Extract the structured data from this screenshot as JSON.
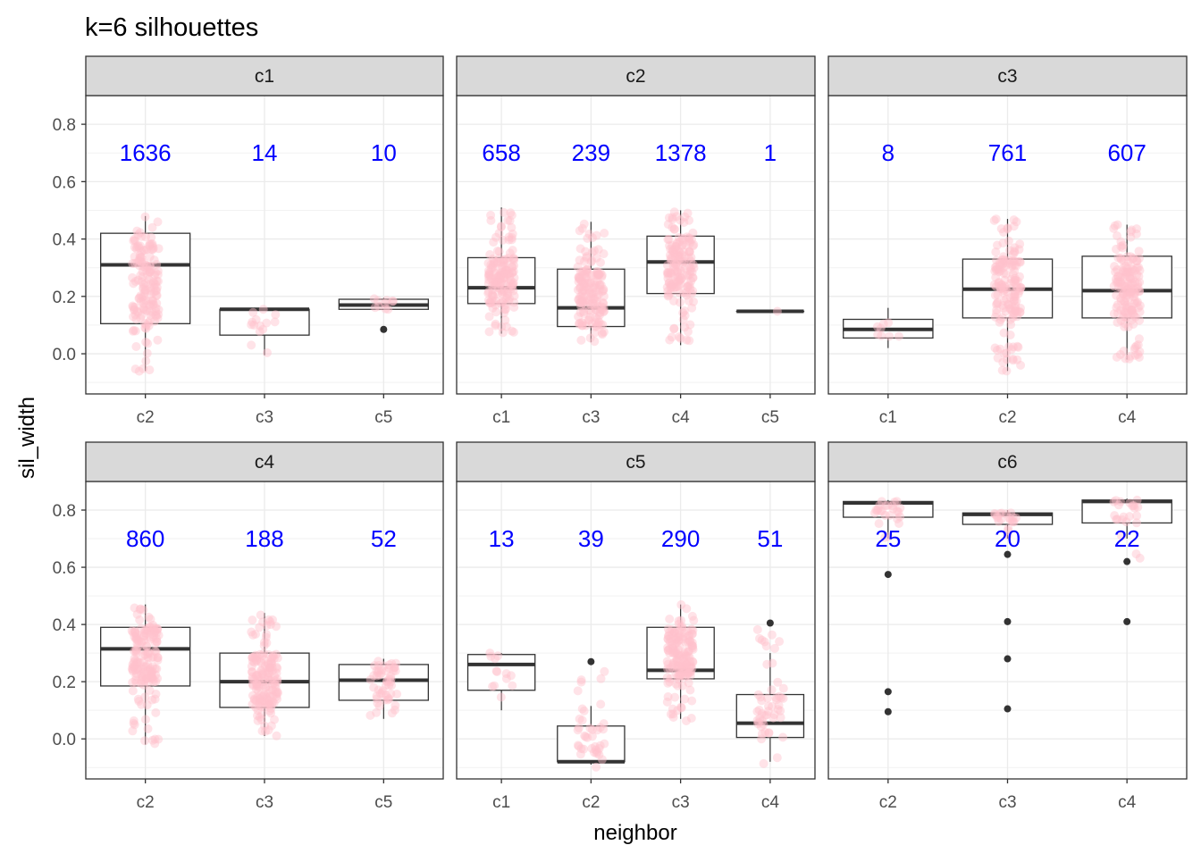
{
  "chart_data": {
    "type": "boxplot",
    "title": "k=6 silhouettes",
    "xlabel": "neighbor",
    "ylabel": "sil_width",
    "ylim": [
      -0.14,
      0.9
    ],
    "yticks": [
      0.0,
      0.2,
      0.4,
      0.6,
      0.8
    ],
    "ytick_labels": [
      "0.0",
      "0.2",
      "0.4",
      "0.6",
      "0.8"
    ],
    "count_label_y": 0.7,
    "grid": true,
    "colors": {
      "points": "#ffc0cb",
      "count_labels": "#0000ff",
      "box": "#333333",
      "outlier": "#333333",
      "strip_bg": "#d9d9d9",
      "grid": "#ebebeb"
    },
    "facets": [
      {
        "name": "c1",
        "groups": [
          {
            "neighbor": "c2",
            "count": "1636",
            "q1": 0.105,
            "median": 0.31,
            "q3": 0.42,
            "whisker_low": -0.06,
            "whisker_high": 0.48,
            "outliers": [],
            "points_range": [
              -0.07,
              0.48
            ]
          },
          {
            "neighbor": "c3",
            "count": "14",
            "q1": 0.065,
            "median": 0.155,
            "q3": 0.155,
            "whisker_low": -0.005,
            "whisker_high": 0.16,
            "outliers": [],
            "points_range": [
              0.0,
              0.19
            ]
          },
          {
            "neighbor": "c5",
            "count": "10",
            "q1": 0.155,
            "median": 0.17,
            "q3": 0.19,
            "whisker_low": 0.155,
            "whisker_high": 0.195,
            "outliers": [
              0.085
            ],
            "points_range": [
              0.15,
              0.2
            ]
          }
        ]
      },
      {
        "name": "c2",
        "groups": [
          {
            "neighbor": "c1",
            "count": "658",
            "q1": 0.175,
            "median": 0.23,
            "q3": 0.335,
            "whisker_low": 0.07,
            "whisker_high": 0.51,
            "outliers": [],
            "points_range": [
              0.07,
              0.51
            ]
          },
          {
            "neighbor": "c3",
            "count": "239",
            "q1": 0.095,
            "median": 0.16,
            "q3": 0.295,
            "whisker_low": 0.04,
            "whisker_high": 0.46,
            "outliers": [],
            "points_range": [
              0.04,
              0.46
            ]
          },
          {
            "neighbor": "c4",
            "count": "1378",
            "q1": 0.21,
            "median": 0.32,
            "q3": 0.41,
            "whisker_low": 0.03,
            "whisker_high": 0.5,
            "outliers": [],
            "points_range": [
              0.04,
              0.5
            ]
          },
          {
            "neighbor": "c5",
            "count": "1",
            "q1": 0.148,
            "median": 0.148,
            "q3": 0.148,
            "whisker_low": 0.148,
            "whisker_high": 0.148,
            "outliers": [],
            "points_range": [
              0.148,
              0.148
            ]
          }
        ]
      },
      {
        "name": "c3",
        "groups": [
          {
            "neighbor": "c1",
            "count": "8",
            "q1": 0.055,
            "median": 0.085,
            "q3": 0.12,
            "whisker_low": 0.02,
            "whisker_high": 0.16,
            "outliers": [],
            "points_range": [
              0.02,
              0.16
            ]
          },
          {
            "neighbor": "c2",
            "count": "761",
            "q1": 0.125,
            "median": 0.225,
            "q3": 0.33,
            "whisker_low": -0.06,
            "whisker_high": 0.47,
            "outliers": [],
            "points_range": [
              -0.06,
              0.47
            ]
          },
          {
            "neighbor": "c4",
            "count": "607",
            "q1": 0.125,
            "median": 0.22,
            "q3": 0.34,
            "whisker_low": -0.02,
            "whisker_high": 0.45,
            "outliers": [],
            "points_range": [
              -0.02,
              0.45
            ]
          }
        ]
      },
      {
        "name": "c4",
        "groups": [
          {
            "neighbor": "c2",
            "count": "860",
            "q1": 0.185,
            "median": 0.315,
            "q3": 0.39,
            "whisker_low": -0.02,
            "whisker_high": 0.47,
            "outliers": [],
            "points_range": [
              -0.03,
              0.47
            ]
          },
          {
            "neighbor": "c3",
            "count": "188",
            "q1": 0.11,
            "median": 0.2,
            "q3": 0.3,
            "whisker_low": 0.01,
            "whisker_high": 0.44,
            "outliers": [],
            "points_range": [
              0.01,
              0.45
            ]
          },
          {
            "neighbor": "c5",
            "count": "52",
            "q1": 0.135,
            "median": 0.205,
            "q3": 0.26,
            "whisker_low": 0.07,
            "whisker_high": 0.28,
            "outliers": [],
            "points_range": [
              0.07,
              0.28
            ]
          }
        ]
      },
      {
        "name": "c5",
        "groups": [
          {
            "neighbor": "c1",
            "count": "13",
            "q1": 0.17,
            "median": 0.26,
            "q3": 0.295,
            "whisker_low": 0.1,
            "whisker_high": 0.3,
            "outliers": [],
            "points_range": [
              0.1,
              0.3
            ]
          },
          {
            "neighbor": "c2",
            "count": "39",
            "q1": -0.08,
            "median": -0.08,
            "q3": 0.045,
            "whisker_low": -0.09,
            "whisker_high": 0.115,
            "outliers": [
              0.27
            ],
            "points_range": [
              -0.1,
              0.28
            ]
          },
          {
            "neighbor": "c3",
            "count": "290",
            "q1": 0.21,
            "median": 0.24,
            "q3": 0.39,
            "whisker_low": 0.07,
            "whisker_high": 0.47,
            "outliers": [],
            "points_range": [
              0.06,
              0.47
            ]
          },
          {
            "neighbor": "c4",
            "count": "51",
            "q1": 0.005,
            "median": 0.055,
            "q3": 0.155,
            "whisker_low": -0.08,
            "whisker_high": 0.3,
            "outliers": [
              0.405
            ],
            "points_range": [
              -0.09,
              0.4
            ]
          }
        ]
      },
      {
        "name": "c6",
        "groups": [
          {
            "neighbor": "c2",
            "count": "25",
            "q1": 0.775,
            "median": 0.825,
            "q3": 0.83,
            "whisker_low": 0.7,
            "whisker_high": 0.835,
            "outliers": [
              0.575,
              0.165,
              0.095
            ],
            "points_range": [
              0.7,
              0.835
            ]
          },
          {
            "neighbor": "c3",
            "count": "20",
            "q1": 0.75,
            "median": 0.785,
            "q3": 0.79,
            "whisker_low": 0.7,
            "whisker_high": 0.8,
            "outliers": [
              0.645,
              0.41,
              0.28,
              0.105
            ],
            "points_range": [
              0.7,
              0.8
            ]
          },
          {
            "neighbor": "c4",
            "count": "22",
            "q1": 0.755,
            "median": 0.83,
            "q3": 0.835,
            "whisker_low": 0.7,
            "whisker_high": 0.84,
            "outliers": [
              0.62,
              0.41
            ],
            "points_range": [
              0.62,
              0.84
            ]
          }
        ]
      }
    ]
  }
}
